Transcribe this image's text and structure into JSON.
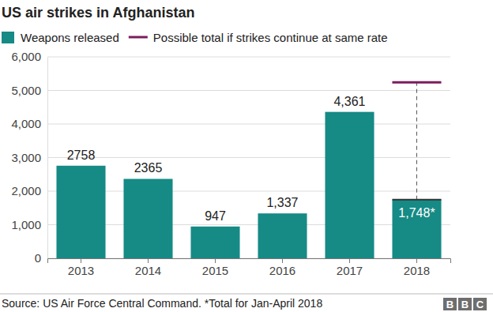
{
  "chart_data": {
    "type": "bar",
    "title": "US air strikes in Afghanistan",
    "categories": [
      "2013",
      "2014",
      "2015",
      "2016",
      "2017",
      "2018"
    ],
    "series": [
      {
        "name": "Weapons released",
        "color": "#168a85",
        "values": [
          2758,
          2365,
          947,
          1337,
          4361,
          1748
        ],
        "value_labels": [
          "2758",
          "2365",
          "947",
          "1,337",
          "4,361",
          "1,748*"
        ]
      },
      {
        "name": "Possible total if strikes continue at same rate",
        "type": "target",
        "color": "#7a1d5c",
        "line_style": "dashed",
        "values": [
          null,
          null,
          null,
          null,
          null,
          5244
        ]
      }
    ],
    "ylim": [
      0,
      6000
    ],
    "yticks": [
      0,
      {
        "value": 1000,
        "label": "1,000"
      },
      {
        "value": 2000,
        "label": "2,000"
      },
      {
        "value": 3000,
        "label": "3,000"
      },
      {
        "value": 4000,
        "label": "4,000"
      },
      {
        "value": 5000,
        "label": "5,000"
      },
      {
        "value": 6000,
        "label": "6,000"
      }
    ],
    "grid": true,
    "data_labels": true,
    "legend": "top-left",
    "source": "Source: US Air Force Central Command. *Total for Jan-April 2018",
    "logo": "BBC"
  }
}
